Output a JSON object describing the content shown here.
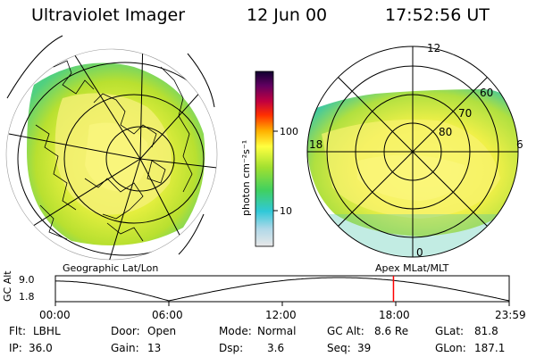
{
  "header": {
    "title": "Ultraviolet Imager",
    "date": "12 Jun 00",
    "time": "17:52:56 UT"
  },
  "left_panel": {
    "caption": "Geographic Lat/Lon"
  },
  "right_panel": {
    "caption": "Apex MLat/MLT",
    "mlt_labels": {
      "top": "12",
      "left": "18",
      "right": "6",
      "bottom": "0"
    },
    "lat_labels": [
      "60",
      "70",
      "80"
    ]
  },
  "colorbar": {
    "unit_label": "photon cm⁻²s⁻¹",
    "ticks": [
      "100",
      "10"
    ],
    "scale": "log"
  },
  "altitude_plot": {
    "ylabel": "GC Alt",
    "yticks": [
      "9.0",
      "1.8"
    ],
    "xticks": [
      "00:00",
      "06:00",
      "12:00",
      "18:00",
      "23:59"
    ],
    "current_time_hours": 17.88,
    "marker_color": "#ff0000"
  },
  "info": {
    "filter_label": "Flt:",
    "filter_value": "LBHL",
    "ip_label": "IP:",
    "ip_value": "36.0",
    "door_label": "Door:",
    "door_value": "Open",
    "gain_label": "Gain:",
    "gain_value": "13",
    "mode_label": "Mode:",
    "mode_value": "Normal",
    "dsp_label": "Dsp:",
    "dsp_value": "3.6",
    "gcalt_label": "GC Alt:",
    "gcalt_value": "8.6 Re",
    "seq_label": "Seq:",
    "seq_value": "39",
    "glat_label": "GLat:",
    "glat_value": "81.8",
    "glon_label": "GLon:",
    "glon_value": "187.1"
  }
}
